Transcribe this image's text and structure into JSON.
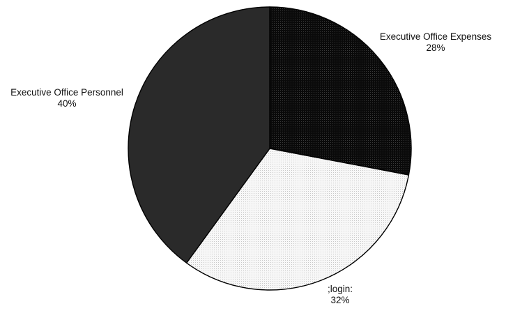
{
  "chart_data": {
    "type": "pie",
    "title": "",
    "slices": [
      {
        "label": "Executive Office Expenses",
        "value": 28,
        "value_label": "28%",
        "fill": "#0d0d0d",
        "pattern": "fine-dots"
      },
      {
        "label": ";login:",
        "value": 32,
        "value_label": "32%",
        "fill": "#f4f4f4",
        "pattern": "fine-dots"
      },
      {
        "label": "Executive Office Personnel",
        "value": 40,
        "value_label": "40%",
        "fill": "#2a2a2a",
        "pattern": "solid"
      }
    ],
    "start_angle_deg": 0,
    "direction": "clockwise",
    "legend": "none",
    "labels": "outside"
  }
}
